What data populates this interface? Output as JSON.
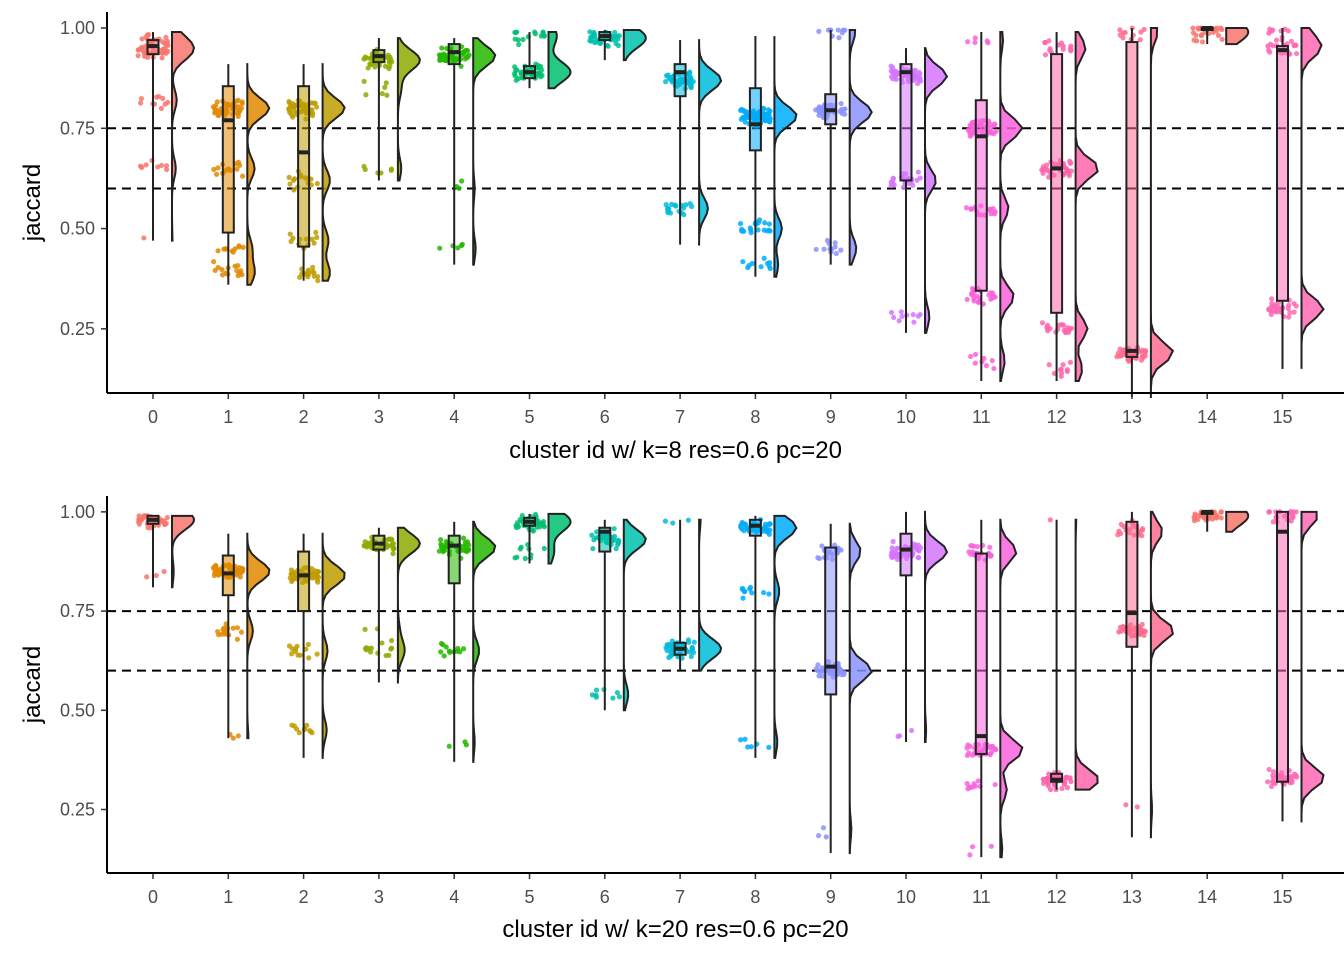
{
  "cluster_colors": [
    "#F8766D",
    "#E18A00",
    "#BE9C00",
    "#8CAB00",
    "#24B700",
    "#00BE70",
    "#00C1AB",
    "#00BBDA",
    "#00ACFC",
    "#8B93FF",
    "#D575FE",
    "#F962DD",
    "#FF65AC",
    "#FF6C91",
    "#F8766D",
    "#FF69B4"
  ],
  "chart_data": [
    {
      "type": "raincloud",
      "title": "",
      "xlabel": "cluster id w/ k=8 res=0.6 pc=20",
      "ylabel": "jaccard",
      "ylim": [
        0.09,
        1.04
      ],
      "yticks": [
        0.25,
        0.5,
        0.75,
        1.0
      ],
      "ytick_labels": [
        "0.25",
        "0.50",
        "0.75",
        "1.00"
      ],
      "thresholds": [
        0.75,
        0.6
      ],
      "categories": [
        "0",
        "1",
        "2",
        "3",
        "4",
        "5",
        "6",
        "7",
        "8",
        "9",
        "10",
        "11",
        "12",
        "13",
        "14",
        "15"
      ],
      "series": [
        {
          "cluster": "0",
          "q1": 0.935,
          "median": 0.955,
          "q3": 0.97,
          "min": 0.47,
          "max": 0.99,
          "jitter": [
            [
              0.94,
              35
            ],
            [
              0.97,
              20
            ],
            [
              0.65,
              8
            ],
            [
              0.82,
              10
            ],
            [
              0.47,
              1
            ]
          ]
        },
        {
          "cluster": "1",
          "q1": 0.49,
          "median": 0.77,
          "q3": 0.855,
          "min": 0.36,
          "max": 0.91,
          "jitter": [
            [
              0.8,
              45
            ],
            [
              0.65,
              15
            ],
            [
              0.45,
              10
            ],
            [
              0.39,
              15
            ]
          ]
        },
        {
          "cluster": "2",
          "q1": 0.455,
          "median": 0.69,
          "q3": 0.855,
          "min": 0.37,
          "max": 0.91,
          "jitter": [
            [
              0.8,
              45
            ],
            [
              0.62,
              15
            ],
            [
              0.47,
              12
            ],
            [
              0.39,
              15
            ]
          ]
        },
        {
          "cluster": "3",
          "q1": 0.915,
          "median": 0.93,
          "q3": 0.945,
          "min": 0.62,
          "max": 0.975,
          "jitter": [
            [
              0.92,
              40
            ],
            [
              0.85,
              6
            ],
            [
              0.65,
              6
            ]
          ]
        },
        {
          "cluster": "4",
          "q1": 0.91,
          "median": 0.94,
          "q3": 0.96,
          "min": 0.41,
          "max": 0.975,
          "jitter": [
            [
              0.93,
              45
            ],
            [
              0.6,
              3
            ],
            [
              0.45,
              5
            ]
          ]
        },
        {
          "cluster": "5",
          "q1": 0.875,
          "median": 0.89,
          "q3": 0.905,
          "min": 0.85,
          "max": 0.99,
          "jitter": [
            [
              0.89,
              40
            ],
            [
              0.98,
              15
            ]
          ]
        },
        {
          "cluster": "6",
          "q1": 0.97,
          "median": 0.98,
          "q3": 0.99,
          "min": 0.92,
          "max": 0.995,
          "jitter": [
            [
              0.975,
              40
            ]
          ]
        },
        {
          "cluster": "7",
          "q1": 0.83,
          "median": 0.89,
          "q3": 0.91,
          "min": 0.46,
          "max": 0.97,
          "jitter": [
            [
              0.87,
              45
            ],
            [
              0.55,
              18
            ]
          ]
        },
        {
          "cluster": "8",
          "q1": 0.695,
          "median": 0.76,
          "q3": 0.85,
          "min": 0.38,
          "max": 0.98,
          "jitter": [
            [
              0.78,
              60
            ],
            [
              0.5,
              20
            ],
            [
              0.41,
              10
            ]
          ]
        },
        {
          "cluster": "9",
          "q1": 0.76,
          "median": 0.795,
          "q3": 0.835,
          "min": 0.41,
          "max": 0.995,
          "jitter": [
            [
              0.79,
              40
            ],
            [
              0.99,
              10
            ],
            [
              0.45,
              12
            ]
          ]
        },
        {
          "cluster": "10",
          "q1": 0.62,
          "median": 0.89,
          "q3": 0.91,
          "min": 0.24,
          "max": 0.95,
          "jitter": [
            [
              0.88,
              50
            ],
            [
              0.62,
              25
            ],
            [
              0.28,
              10
            ]
          ]
        },
        {
          "cluster": "11",
          "q1": 0.345,
          "median": 0.73,
          "q3": 0.82,
          "min": 0.12,
          "max": 0.99,
          "jitter": [
            [
              0.75,
              40
            ],
            [
              0.55,
              15
            ],
            [
              0.33,
              25
            ],
            [
              0.17,
              8
            ],
            [
              0.97,
              5
            ]
          ]
        },
        {
          "cluster": "12",
          "q1": 0.29,
          "median": 0.65,
          "q3": 0.935,
          "min": 0.12,
          "max": 0.99,
          "jitter": [
            [
              0.95,
              15
            ],
            [
              0.65,
              35
            ],
            [
              0.25,
              18
            ],
            [
              0.15,
              10
            ]
          ]
        },
        {
          "cluster": "13",
          "q1": 0.18,
          "median": 0.195,
          "q3": 0.965,
          "min": 0.08,
          "max": 1.0,
          "jitter": [
            [
              0.19,
              40
            ],
            [
              0.99,
              12
            ]
          ]
        },
        {
          "cluster": "14",
          "q1": 0.995,
          "median": 1.0,
          "q3": 1.0,
          "min": 0.96,
          "max": 1.0,
          "jitter": [
            [
              0.99,
              25
            ]
          ]
        },
        {
          "cluster": "15",
          "q1": 0.32,
          "median": 0.945,
          "q3": 0.955,
          "min": 0.15,
          "max": 1.0,
          "jitter": [
            [
              0.95,
              25
            ],
            [
              0.3,
              30
            ],
            [
              0.99,
              8
            ]
          ]
        }
      ]
    },
    {
      "type": "raincloud",
      "title": "",
      "xlabel": "cluster id w/ k=20 res=0.6 pc=20",
      "ylabel": "jaccard",
      "ylim": [
        0.09,
        1.04
      ],
      "yticks": [
        0.25,
        0.5,
        0.75,
        1.0
      ],
      "ytick_labels": [
        "0.25",
        "0.50",
        "0.75",
        "1.00"
      ],
      "thresholds": [
        0.75,
        0.6
      ],
      "categories": [
        "0",
        "1",
        "2",
        "3",
        "4",
        "5",
        "6",
        "7",
        "8",
        "9",
        "10",
        "11",
        "12",
        "13",
        "14",
        "15"
      ],
      "series": [
        {
          "cluster": "0",
          "q1": 0.97,
          "median": 0.98,
          "q3": 0.99,
          "min": 0.81,
          "max": 0.99,
          "jitter": [
            [
              0.98,
              40
            ],
            [
              0.85,
              3
            ]
          ]
        },
        {
          "cluster": "1",
          "q1": 0.79,
          "median": 0.845,
          "q3": 0.89,
          "min": 0.43,
          "max": 0.945,
          "jitter": [
            [
              0.85,
              60
            ],
            [
              0.7,
              15
            ],
            [
              0.43,
              3
            ]
          ]
        },
        {
          "cluster": "2",
          "q1": 0.75,
          "median": 0.84,
          "q3": 0.9,
          "min": 0.38,
          "max": 0.945,
          "jitter": [
            [
              0.84,
              55
            ],
            [
              0.65,
              12
            ],
            [
              0.45,
              10
            ]
          ]
        },
        {
          "cluster": "3",
          "q1": 0.905,
          "median": 0.92,
          "q3": 0.94,
          "min": 0.57,
          "max": 0.96,
          "jitter": [
            [
              0.92,
              40
            ],
            [
              0.65,
              12
            ],
            [
              0.7,
              3
            ]
          ]
        },
        {
          "cluster": "4",
          "q1": 0.82,
          "median": 0.915,
          "q3": 0.94,
          "min": 0.37,
          "max": 0.975,
          "jitter": [
            [
              0.91,
              45
            ],
            [
              0.65,
              12
            ],
            [
              0.42,
              3
            ]
          ]
        },
        {
          "cluster": "5",
          "q1": 0.965,
          "median": 0.975,
          "q3": 0.985,
          "min": 0.87,
          "max": 0.995,
          "jitter": [
            [
              0.975,
              40
            ],
            [
              0.9,
              10
            ]
          ]
        },
        {
          "cluster": "6",
          "q1": 0.9,
          "median": 0.95,
          "q3": 0.96,
          "min": 0.5,
          "max": 0.98,
          "jitter": [
            [
              0.93,
              40
            ],
            [
              0.54,
              8
            ]
          ]
        },
        {
          "cluster": "7",
          "q1": 0.64,
          "median": 0.655,
          "q3": 0.67,
          "min": 0.6,
          "max": 0.98,
          "jitter": [
            [
              0.655,
              45
            ],
            [
              0.98,
              3
            ]
          ]
        },
        {
          "cluster": "8",
          "q1": 0.94,
          "median": 0.965,
          "q3": 0.98,
          "min": 0.38,
          "max": 0.99,
          "jitter": [
            [
              0.96,
              45
            ],
            [
              0.8,
              10
            ],
            [
              0.42,
              6
            ]
          ]
        },
        {
          "cluster": "9",
          "q1": 0.54,
          "median": 0.61,
          "q3": 0.91,
          "min": 0.14,
          "max": 0.97,
          "jitter": [
            [
              0.6,
              40
            ],
            [
              0.9,
              20
            ],
            [
              0.2,
              3
            ]
          ]
        },
        {
          "cluster": "10",
          "q1": 0.84,
          "median": 0.905,
          "q3": 0.945,
          "min": 0.42,
          "max": 1.0,
          "jitter": [
            [
              0.9,
              60
            ],
            [
              0.45,
              3
            ]
          ]
        },
        {
          "cluster": "11",
          "q1": 0.39,
          "median": 0.435,
          "q3": 0.895,
          "min": 0.13,
          "max": 0.98,
          "jitter": [
            [
              0.9,
              25
            ],
            [
              0.4,
              35
            ],
            [
              0.3,
              10
            ],
            [
              0.15,
              3
            ]
          ]
        },
        {
          "cluster": "12",
          "q1": 0.32,
          "median": 0.325,
          "q3": 0.34,
          "min": 0.3,
          "max": 0.98,
          "jitter": [
            [
              0.325,
              40
            ],
            [
              0.98,
              1
            ]
          ]
        },
        {
          "cluster": "13",
          "q1": 0.66,
          "median": 0.745,
          "q3": 0.975,
          "min": 0.18,
          "max": 1.0,
          "jitter": [
            [
              0.7,
              40
            ],
            [
              0.95,
              20
            ],
            [
              0.25,
              2
            ]
          ]
        },
        {
          "cluster": "14",
          "q1": 0.995,
          "median": 1.0,
          "q3": 1.0,
          "min": 0.95,
          "max": 1.0,
          "jitter": [
            [
              0.99,
              30
            ]
          ]
        },
        {
          "cluster": "15",
          "q1": 0.32,
          "median": 0.95,
          "q3": 1.0,
          "min": 0.22,
          "max": 1.0,
          "jitter": [
            [
              0.99,
              25
            ],
            [
              0.33,
              35
            ]
          ]
        }
      ]
    }
  ]
}
